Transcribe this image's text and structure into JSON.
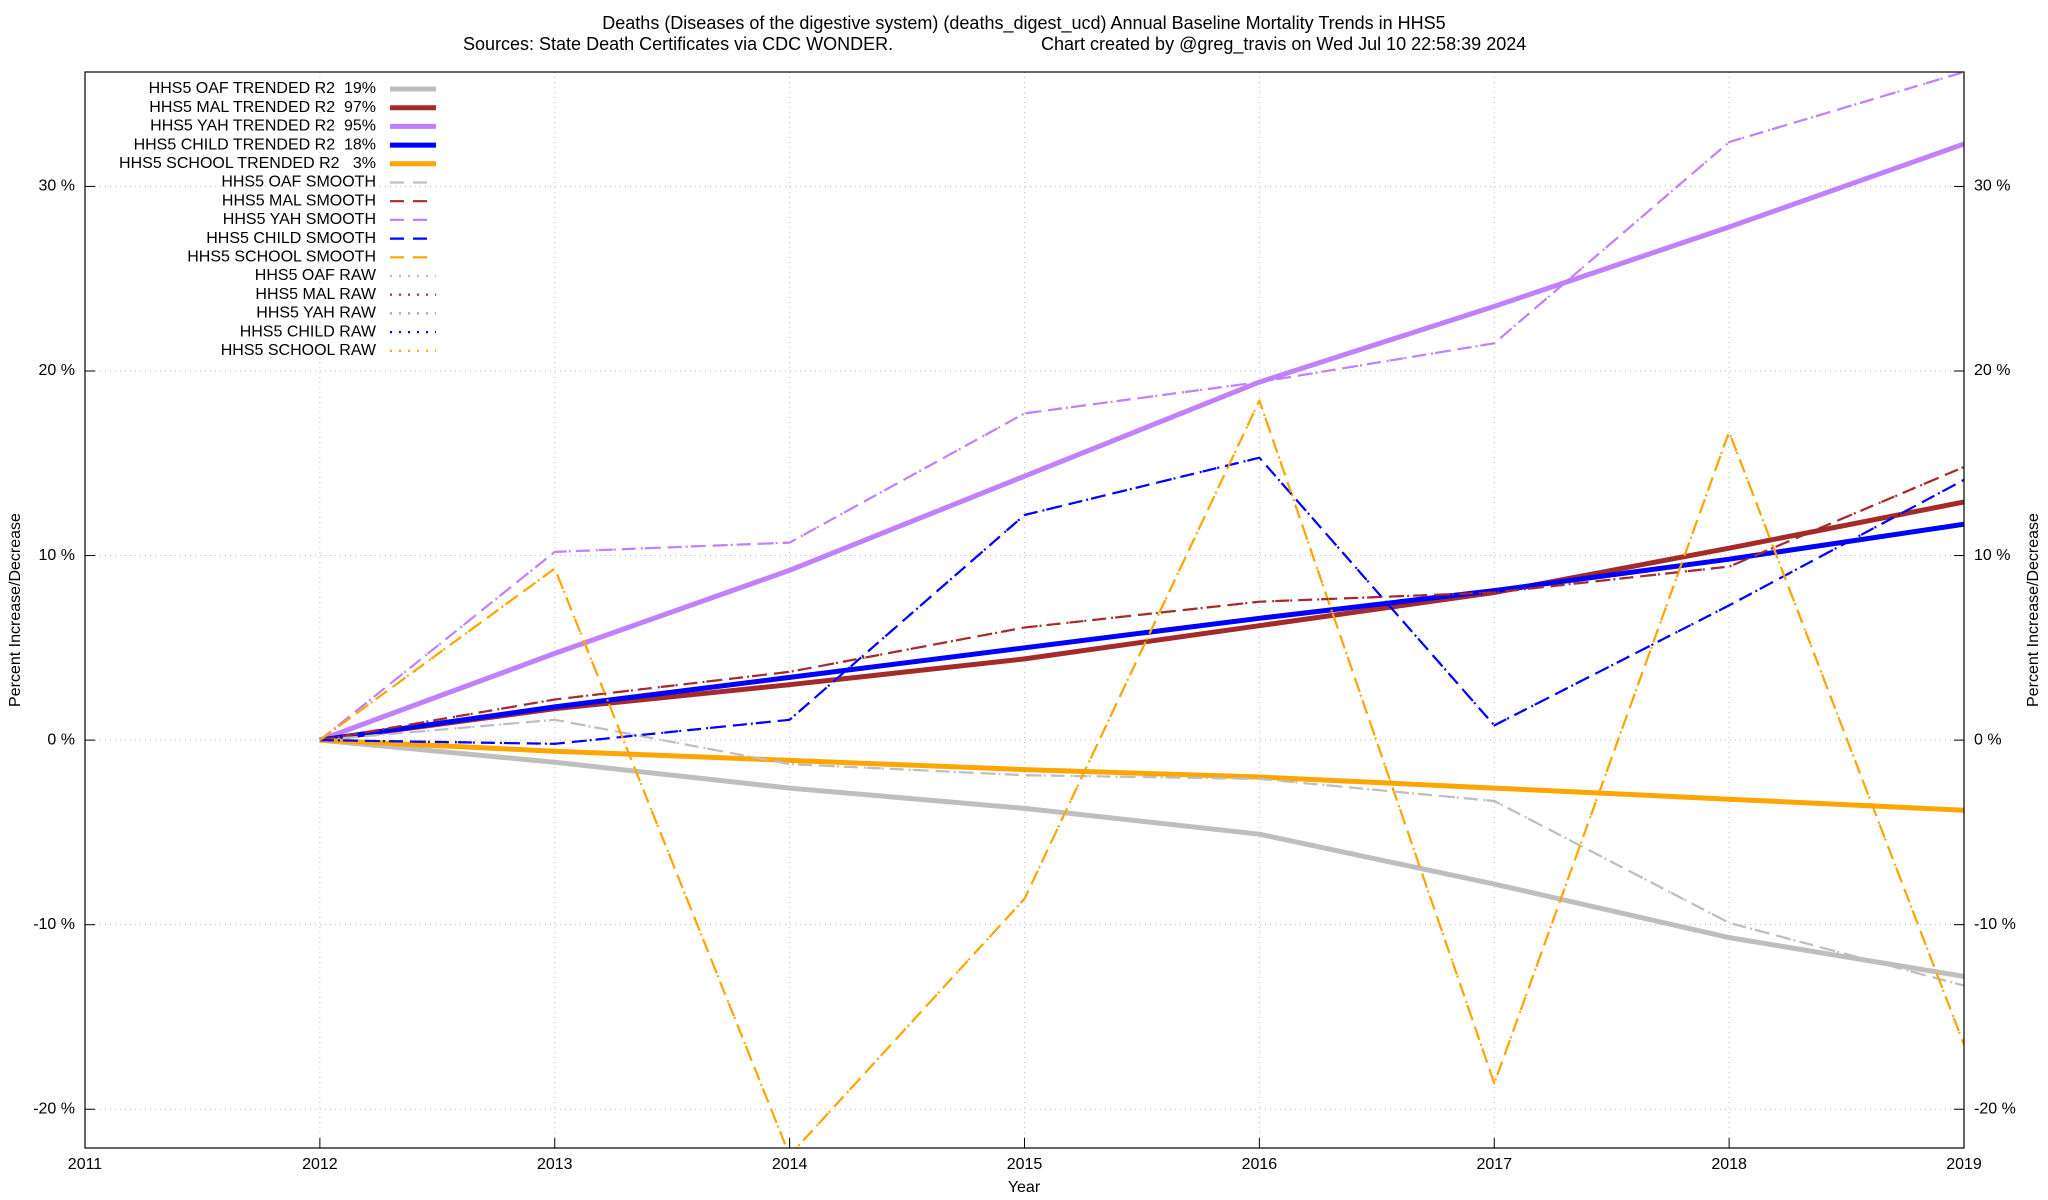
{
  "chart_data": {
    "type": "line",
    "title": "Deaths (Diseases of the digestive system) (deaths_digest_ucd)  Annual Baseline Mortality Trends in HHS5",
    "subtitle": "Sources: State Death Certificates via CDC WONDER.",
    "credit": "Chart created by @greg_travis on Wed Jul 10 22:58:39 2024",
    "xlabel": "Year",
    "ylabel": "Percent Increase/Decrease",
    "y2label": "Percent Increase/Decrease",
    "x": [
      2012,
      2013,
      2014,
      2015,
      2016,
      2017,
      2018,
      2019
    ],
    "xlim": [
      2011,
      2019
    ],
    "xticks": [
      2011,
      2012,
      2013,
      2014,
      2015,
      2016,
      2017,
      2018,
      2019
    ],
    "ylim": [
      -22.1,
      36.2
    ],
    "yticks": [
      {
        "value": -20,
        "label": "-20 %"
      },
      {
        "value": -10,
        "label": "-10 %"
      },
      {
        "value": 0,
        "label": "0 %"
      },
      {
        "value": 10,
        "label": "10 %"
      },
      {
        "value": 20,
        "label": "20 %"
      },
      {
        "value": 30,
        "label": "30 %"
      }
    ],
    "y2lim": [
      -22.1,
      36.2
    ],
    "y2ticks": [
      {
        "value": -20,
        "label": "-20 %"
      },
      {
        "value": -10,
        "label": "-10 %"
      },
      {
        "value": 0,
        "label": "0 %"
      },
      {
        "value": 10,
        "label": "10 %"
      },
      {
        "value": 20,
        "label": "20 %"
      },
      {
        "value": 30,
        "label": "30 %"
      }
    ],
    "grid": true,
    "legend": "top-left",
    "series": [
      {
        "name": "HHS5 OAF TRENDED R2  19%",
        "color": "#bebebe",
        "style": "solid",
        "values": [
          0,
          -1.2,
          -2.6,
          -3.7,
          -5.1,
          -7.8,
          -10.7,
          -12.8
        ]
      },
      {
        "name": "HHS5 MAL TRENDED R2  97%",
        "color": "#a52a2a",
        "style": "solid",
        "values": [
          0,
          1.7,
          3.0,
          4.4,
          6.2,
          8.0,
          10.4,
          12.9
        ]
      },
      {
        "name": "HHS5 YAH TRENDED R2  95%",
        "color": "#c080ff",
        "style": "solid",
        "values": [
          0,
          4.7,
          9.2,
          14.3,
          19.4,
          23.5,
          27.8,
          32.3
        ]
      },
      {
        "name": "HHS5 CHILD TRENDED R2  18%",
        "color": "#0000ff",
        "style": "solid",
        "values": [
          0,
          1.8,
          3.4,
          5.0,
          6.6,
          8.1,
          9.8,
          11.7
        ]
      },
      {
        "name": "HHS5 SCHOOL TRENDED R2   3%",
        "color": "#ffa500",
        "style": "solid",
        "values": [
          0,
          -0.6,
          -1.1,
          -1.6,
          -2.0,
          -2.6,
          -3.2,
          -3.8
        ]
      },
      {
        "name": "HHS5 OAF SMOOTH",
        "color": "#bebebe",
        "style": "dashed",
        "values": [
          0,
          1.1,
          -1.3,
          -1.9,
          -2.1,
          -3.3,
          -9.9,
          -13.3
        ]
      },
      {
        "name": "HHS5 MAL SMOOTH",
        "color": "#a52a2a",
        "style": "dashed",
        "values": [
          0,
          2.2,
          3.7,
          6.1,
          7.5,
          8.0,
          9.4,
          14.8
        ]
      },
      {
        "name": "HHS5 YAH SMOOTH",
        "color": "#c080ff",
        "style": "dashed",
        "values": [
          0,
          10.2,
          10.7,
          17.7,
          19.4,
          21.5,
          32.4,
          36.2
        ]
      },
      {
        "name": "HHS5 CHILD SMOOTH",
        "color": "#0000ff",
        "style": "dashed",
        "values": [
          0,
          -0.2,
          1.1,
          12.2,
          15.3,
          0.8,
          7.3,
          14.1
        ]
      },
      {
        "name": "HHS5 SCHOOL SMOOTH",
        "color": "#ffa500",
        "style": "dashed",
        "values": [
          0,
          9.3,
          -22.5,
          -8.6,
          18.4,
          -18.6,
          16.7,
          -16.5
        ]
      },
      {
        "name": "HHS5 OAF RAW",
        "color": "#bebebe",
        "style": "dotted",
        "values": [
          0,
          1.1,
          -1.3,
          -1.9,
          -2.1,
          -3.3,
          -9.9,
          -13.3
        ]
      },
      {
        "name": "HHS5 MAL RAW",
        "color": "#a52a2a",
        "style": "dotted",
        "values": [
          0,
          2.2,
          3.7,
          6.1,
          7.5,
          8.0,
          9.4,
          14.8
        ]
      },
      {
        "name": "HHS5 YAH RAW",
        "color": "#c080ff",
        "style": "dotted",
        "values": [
          0,
          10.2,
          10.7,
          17.7,
          19.4,
          21.5,
          32.4,
          36.2
        ]
      },
      {
        "name": "HHS5 CHILD RAW",
        "color": "#0000ff",
        "style": "dotted",
        "values": [
          0,
          -0.2,
          1.1,
          12.2,
          15.3,
          0.8,
          7.3,
          14.1
        ]
      },
      {
        "name": "HHS5 SCHOOL RAW",
        "color": "#ffa500",
        "style": "dotted",
        "values": [
          0,
          9.3,
          -22.5,
          -8.6,
          18.4,
          -18.6,
          16.7,
          -16.5
        ]
      }
    ]
  }
}
